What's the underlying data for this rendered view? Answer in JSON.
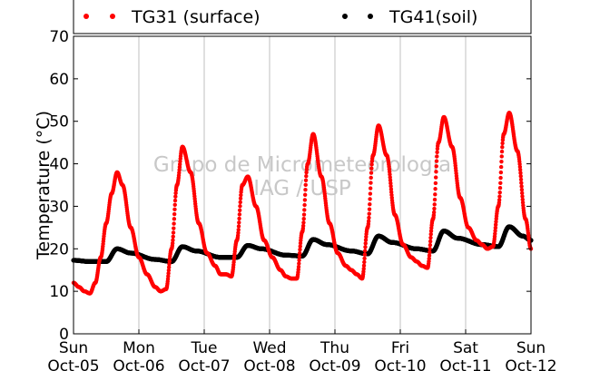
{
  "chart_data": {
    "type": "scatter",
    "title": "",
    "ylabel": "Temperature (°C)",
    "xlabel": "",
    "ylim": [
      0,
      70
    ],
    "yticks": [
      0,
      10,
      20,
      30,
      40,
      50,
      60,
      70
    ],
    "grid": "vertical lines at day boundaries",
    "legend_position": "top",
    "xlim_days": [
      0,
      7
    ],
    "x_ticks": [
      {
        "day": "Sun",
        "date": "Oct-05"
      },
      {
        "day": "Mon",
        "date": "Oct-06"
      },
      {
        "day": "Tue",
        "date": "Oct-07"
      },
      {
        "day": "Wed",
        "date": "Oct-08"
      },
      {
        "day": "Thu",
        "date": "Oct-09"
      },
      {
        "day": "Fri",
        "date": "Oct-10"
      },
      {
        "day": "Sat",
        "date": "Oct-11"
      },
      {
        "day": "Sun",
        "date": "Oct-12"
      }
    ],
    "watermark": [
      "Grupo de Micrometeorologia",
      "IAG / USP"
    ],
    "series": [
      {
        "name": "TG31 (surface)",
        "color": "#ff0000",
        "x": [
          "Oct-05 00:00",
          "Oct-05 02:00",
          "Oct-05 04:00",
          "Oct-05 06:00",
          "Oct-05 08:00",
          "Oct-05 10:00",
          "Oct-05 12:00",
          "Oct-05 14:00",
          "Oct-05 16:00",
          "Oct-05 18:00",
          "Oct-05 21:00",
          "Oct-06 00:00",
          "Oct-06 03:00",
          "Oct-06 06:00",
          "Oct-06 08:00",
          "Oct-06 10:00",
          "Oct-06 12:00",
          "Oct-06 14:00",
          "Oct-06 16:00",
          "Oct-06 19:00",
          "Oct-06 22:00",
          "Oct-07 01:00",
          "Oct-07 04:00",
          "Oct-07 06:00",
          "Oct-07 08:00",
          "Oct-07 10:00",
          "Oct-07 12:00",
          "Oct-07 14:00",
          "Oct-07 16:00",
          "Oct-07 19:00",
          "Oct-07 22:00",
          "Oct-08 01:00",
          "Oct-08 04:00",
          "Oct-08 06:00",
          "Oct-08 08:00",
          "Oct-08 10:00",
          "Oct-08 12:00",
          "Oct-08 14:00",
          "Oct-08 16:00",
          "Oct-08 19:00",
          "Oct-08 22:00",
          "Oct-09 01:00",
          "Oct-09 04:00",
          "Oct-09 06:00",
          "Oct-09 08:00",
          "Oct-09 10:00",
          "Oct-09 12:00",
          "Oct-09 14:00",
          "Oct-09 16:00",
          "Oct-09 19:00",
          "Oct-09 22:00",
          "Oct-10 01:00",
          "Oct-10 04:00",
          "Oct-10 06:00",
          "Oct-10 08:00",
          "Oct-10 10:00",
          "Oct-10 12:00",
          "Oct-10 14:00",
          "Oct-10 16:00",
          "Oct-10 19:00",
          "Oct-10 22:00",
          "Oct-11 01:00",
          "Oct-11 04:00",
          "Oct-11 06:00",
          "Oct-11 08:00",
          "Oct-11 10:00",
          "Oct-11 12:00",
          "Oct-11 14:00",
          "Oct-11 16:00",
          "Oct-11 19:00",
          "Oct-11 22:00",
          "Oct-12 00:00"
        ],
        "y": [
          12,
          11,
          10,
          9.5,
          12,
          18,
          26,
          33,
          38,
          35,
          25,
          18,
          14,
          11,
          10,
          10.5,
          20,
          35,
          44,
          38,
          26,
          19,
          16,
          14,
          14,
          13.5,
          22,
          35,
          37,
          30,
          22,
          18,
          15,
          13.5,
          13,
          13,
          24,
          40,
          47,
          37,
          26,
          19,
          16,
          15,
          14,
          13,
          25,
          42,
          49,
          42,
          28,
          21,
          18,
          17,
          16,
          15.5,
          27,
          45,
          51,
          44,
          32,
          25,
          22,
          21,
          20,
          20.5,
          30,
          47,
          52,
          43,
          27,
          20
        ]
      },
      {
        "name": "TG41(soil)",
        "color": "#000000",
        "x": [
          "Oct-05 00:00",
          "Oct-05 06:00",
          "Oct-05 12:00",
          "Oct-05 16:00",
          "Oct-05 21:00",
          "Oct-06 06:00",
          "Oct-06 12:00",
          "Oct-06 16:00",
          "Oct-06 21:00",
          "Oct-07 06:00",
          "Oct-07 12:00",
          "Oct-07 16:00",
          "Oct-07 21:00",
          "Oct-08 06:00",
          "Oct-08 12:00",
          "Oct-08 16:00",
          "Oct-08 21:00",
          "Oct-09 06:00",
          "Oct-09 12:00",
          "Oct-09 16:00",
          "Oct-09 21:00",
          "Oct-10 06:00",
          "Oct-10 12:00",
          "Oct-10 16:00",
          "Oct-10 21:00",
          "Oct-11 06:00",
          "Oct-11 12:00",
          "Oct-11 16:00",
          "Oct-11 21:00",
          "Oct-12 00:00"
        ],
        "y": [
          17.3,
          17,
          17,
          20,
          19,
          17.5,
          17,
          20.5,
          19.5,
          18,
          18,
          20.8,
          20,
          18.5,
          18.3,
          22.2,
          21,
          19.5,
          18.8,
          23,
          21.5,
          20,
          19.5,
          24.2,
          22.5,
          21,
          20.5,
          25.2,
          23,
          22
        ]
      }
    ]
  }
}
